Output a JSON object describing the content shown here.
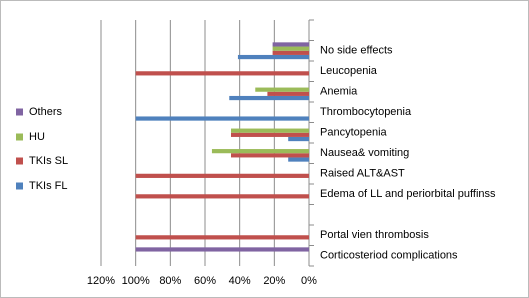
{
  "chart_data": {
    "type": "bar",
    "orientation": "horizontal",
    "x_reversed": true,
    "categories": [
      null,
      "No side effects",
      "Leucopenia",
      "Anemia",
      "Thrombocytopenia",
      "Pancytopenia",
      "Nausea& vomiting",
      "Raised ALT&AST",
      "Edema of LL and periorbital puffinss",
      null,
      "Portal vien thrombosis",
      "Corticosteriod complications"
    ],
    "series": [
      {
        "name": "TKIs FL",
        "color": "#4f81bd",
        "values": [
          0,
          41,
          0,
          46,
          100,
          12,
          12,
          0,
          0,
          0,
          0,
          0
        ]
      },
      {
        "name": "TKIs SL",
        "color": "#c0504d",
        "values": [
          0,
          21,
          100,
          24,
          0,
          45,
          45,
          100,
          100,
          0,
          100,
          0
        ]
      },
      {
        "name": "HU",
        "color": "#9bbb59",
        "values": [
          0,
          21,
          0,
          31,
          0,
          45,
          56,
          0,
          0,
          0,
          0,
          0
        ]
      },
      {
        "name": "Others",
        "color": "#8064a2",
        "values": [
          0,
          21,
          0,
          0,
          0,
          0,
          0,
          0,
          0,
          0,
          0,
          100
        ]
      }
    ],
    "xlim": [
      0,
      120
    ],
    "xticks": [
      {
        "value": 120,
        "label": "120%"
      },
      {
        "value": 100,
        "label": "100%"
      },
      {
        "value": 80,
        "label": "80%"
      },
      {
        "value": 60,
        "label": "60%"
      },
      {
        "value": 40,
        "label": "40%"
      },
      {
        "value": 20,
        "label": "20%"
      },
      {
        "value": 0,
        "label": "0%"
      }
    ],
    "grid": true,
    "legend": "left"
  }
}
